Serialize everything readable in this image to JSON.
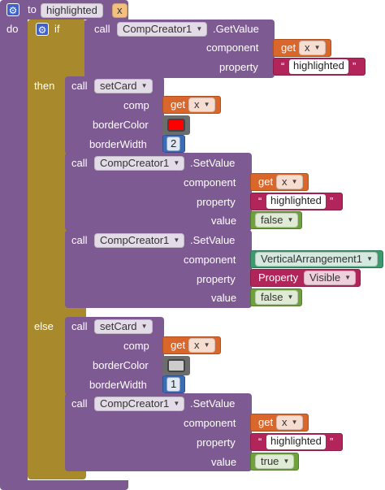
{
  "procedure": {
    "to_label": "to",
    "name": "highlighted",
    "param": "x",
    "do_label": "do"
  },
  "if_block": {
    "if_label": "if",
    "then_label": "then",
    "else_label": "else",
    "condition": {
      "call_label": "call",
      "component": "CompCreator1",
      "method": ".GetValue",
      "component_label": "component",
      "property_label": "property",
      "get_label": "get",
      "get_var": "x",
      "property_value": "highlighted"
    }
  },
  "then_branch": {
    "setcard": {
      "call_label": "call",
      "proc": "setCard",
      "comp_label": "comp",
      "get_label": "get",
      "get_var": "x",
      "border_color_label": "borderColor",
      "border_color": "#ff0000",
      "border_width_label": "borderWidth",
      "border_width": "2"
    },
    "setvalue1": {
      "call_label": "call",
      "component": "CompCreator1",
      "method": ".SetValue",
      "component_label": "component",
      "get_label": "get",
      "get_var": "x",
      "property_label": "property",
      "property_value": "highlighted",
      "value_label": "value",
      "value": "false"
    },
    "setvalue2": {
      "call_label": "call",
      "component": "CompCreator1",
      "method": ".SetValue",
      "component_label": "component",
      "component_value": "VerticalArrangement1",
      "property_label": "property",
      "property_prefix": "Property",
      "property_value": "Visible",
      "value_label": "value",
      "value": "false"
    }
  },
  "else_branch": {
    "setcard": {
      "call_label": "call",
      "proc": "setCard",
      "comp_label": "comp",
      "get_label": "get",
      "get_var": "x",
      "border_color_label": "borderColor",
      "border_color": "#cccccc",
      "border_width_label": "borderWidth",
      "border_width": "1"
    },
    "setvalue": {
      "call_label": "call",
      "component": "CompCreator1",
      "method": ".SetValue",
      "component_label": "component",
      "get_label": "get",
      "get_var": "x",
      "property_label": "property",
      "property_value": "highlighted",
      "value_label": "value",
      "value": "true"
    }
  },
  "colors": {
    "procedure": "#7e5a93",
    "control": "#a8892c",
    "variable": "#d9662a",
    "text": "#b1255a",
    "logic": "#6ea23c",
    "math": "#3b6bb3"
  },
  "icons": [
    "gear-icon",
    "dropdown-arrow-icon"
  ]
}
